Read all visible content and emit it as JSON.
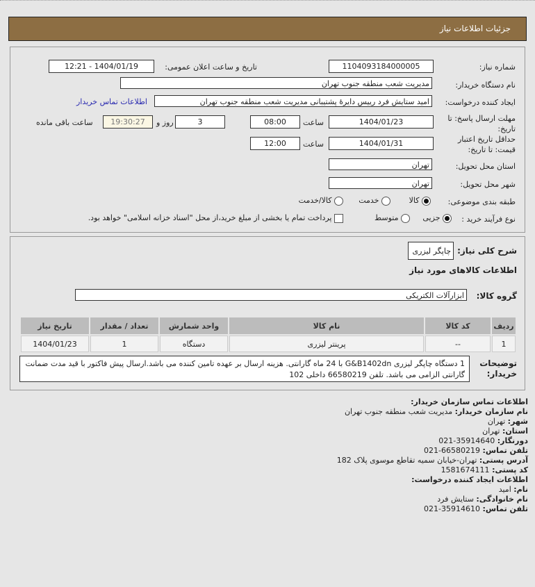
{
  "header": {
    "title": "جزئیات اطلاعات نیاز"
  },
  "form": {
    "need_number_label": "شماره نیاز:",
    "need_number": "1104093184000005",
    "announce_label": "تاریخ و ساعت اعلان عمومی:",
    "announce_value": "1404/01/19 - 12:21",
    "buyer_label": "نام دستگاه خریدار:",
    "buyer_value": "مدیریت شعب منطقه جنوب تهران",
    "creator_label": "ایجاد کننده درخواست:",
    "creator_value": "امید ستایش فرد رییس دایرهٔ پشتیبانی مدیریت شعب منطقه جنوب تهران",
    "contact_link": "اطلاعات تماس خریدار",
    "deadline_label": "مهلت ارسال پاسخ: تا تاریخ:",
    "deadline_date": "1404/01/23",
    "time_label": "ساعت",
    "deadline_time": "08:00",
    "days": "3",
    "days_label": "روز و",
    "remaining": "19:30:27",
    "remaining_label": "ساعت باقی مانده",
    "validity_label": "حداقل تاریخ اعتبار قیمت: تا تاریخ:",
    "validity_date": "1404/01/31",
    "validity_time": "12:00",
    "province_label": "استان محل تحویل:",
    "province": "تهران",
    "city_label": "شهر محل تحویل:",
    "city": "تهران",
    "category_label": "طبقه بندی موضوعی:",
    "category_options": [
      "کالا",
      "خدمت",
      "کالا/خدمت"
    ],
    "category_selected": "کالا",
    "process_label": "نوع فرآیند خرید :",
    "process_options": [
      "جزیی",
      "متوسط"
    ],
    "process_selected": "جزیی",
    "payment_note": "پرداخت تمام یا بخشی از مبلغ خرید،از محل \"اسناد خزانه اسلامی\" خواهد بود."
  },
  "summary": {
    "label": "شرح کلی نیاز:",
    "value": "چاپگر لیزری",
    "goods_title": "اطلاعات کالاهای مورد نیاز",
    "group_label": "گروه کالا:",
    "group_value": "ابزارآلات الکتریکی"
  },
  "table": {
    "headers": [
      "ردیف",
      "کد کالا",
      "نام کالا",
      "واحد شمارش",
      "تعداد / مقدار",
      "تاریخ نیاز"
    ],
    "rows": [
      [
        "1",
        "--",
        "پرینتر لیزری",
        "دستگاه",
        "1",
        "1404/01/23"
      ]
    ]
  },
  "description": {
    "label": "توضیحات خریدار:",
    "text": "1 دستگاه چاپگر لیزری G&B1402dn با 24 ماه گارانتی. هزینه ارسال بر عهده تامین کننده می باشد.ارسال پیش فاکتور با قید مدت ضمانت گارانتی الزامی می باشد. تلفن 66580219 داخلی 102"
  },
  "contact": {
    "title": "اطلاعات تماس سازمان خریدار:",
    "items": [
      {
        "k": "نام سازمان خریدار:",
        "v": "مدیریت شعب منطقه جنوب تهران"
      },
      {
        "k": "شهر:",
        "v": "تهران"
      },
      {
        "k": "استان:",
        "v": "تهران"
      },
      {
        "k": "دورنگار:",
        "v": "35914640-021"
      },
      {
        "k": "تلفن تماس:",
        "v": "66580219-021"
      },
      {
        "k": "آدرس پستی:",
        "v": "تهران-خیابان سمیه تقاطع موسوی پلاک 182"
      },
      {
        "k": "کد پستی:",
        "v": "1581674111"
      }
    ],
    "creator_title": "اطلاعات ایجاد کننده درخواست:",
    "creator_items": [
      {
        "k": "نام:",
        "v": "امید"
      },
      {
        "k": "نام خانوادگی:",
        "v": "ستایش فرد"
      },
      {
        "k": "تلفن تماس:",
        "v": "35914610-021"
      }
    ]
  },
  "colors": {
    "header": "#8d6e43",
    "link": "#2a2ab0",
    "remaining_bg": "#fbf7e4"
  }
}
